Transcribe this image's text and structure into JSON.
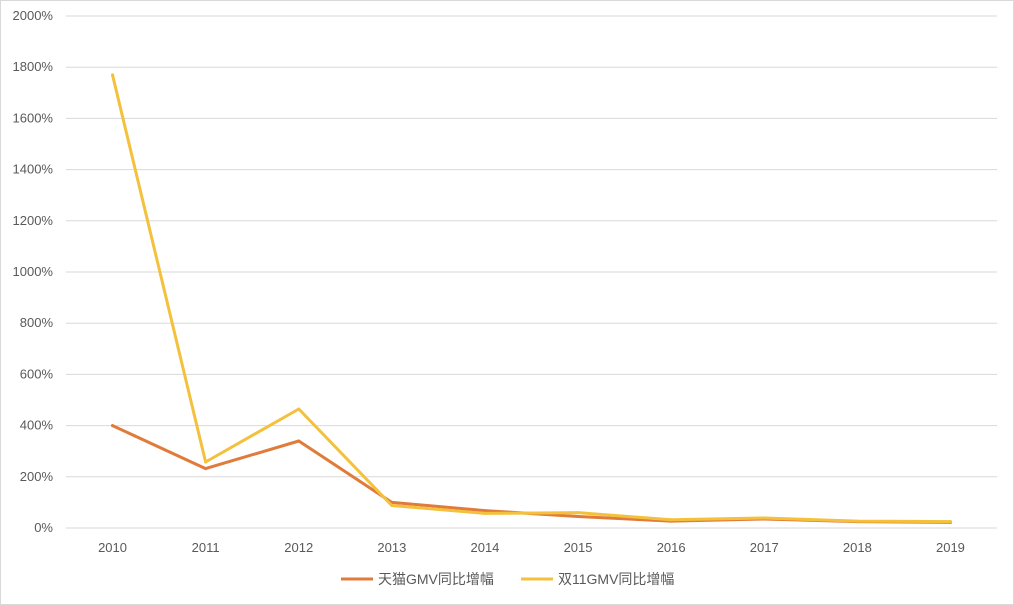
{
  "chart_data": {
    "type": "line",
    "title": "",
    "xlabel": "",
    "ylabel": "",
    "categories": [
      "2010",
      "2011",
      "2012",
      "2013",
      "2014",
      "2015",
      "2016",
      "2017",
      "2018",
      "2019"
    ],
    "ylim": [
      0,
      2000
    ],
    "y_ticks": [
      0,
      200,
      400,
      600,
      800,
      1000,
      1200,
      1400,
      1600,
      1800,
      2000
    ],
    "y_tick_labels": [
      "0%",
      "200%",
      "400%",
      "600%",
      "800%",
      "1000%",
      "1200%",
      "1400%",
      "1600%",
      "1800%",
      "2000%"
    ],
    "y_unit": "%",
    "grid": "horizontal",
    "legend_position": "bottom",
    "series": [
      {
        "name": "天猫GMV同比增幅",
        "color": "#E07B39",
        "values": [
          400,
          232,
          340,
          100,
          68,
          45,
          27,
          35,
          25,
          22
        ]
      },
      {
        "name": "双11GMV同比增幅",
        "color": "#F4C13D",
        "values": [
          1770,
          258,
          465,
          88,
          57,
          60,
          32,
          39,
          27,
          25
        ]
      }
    ]
  }
}
